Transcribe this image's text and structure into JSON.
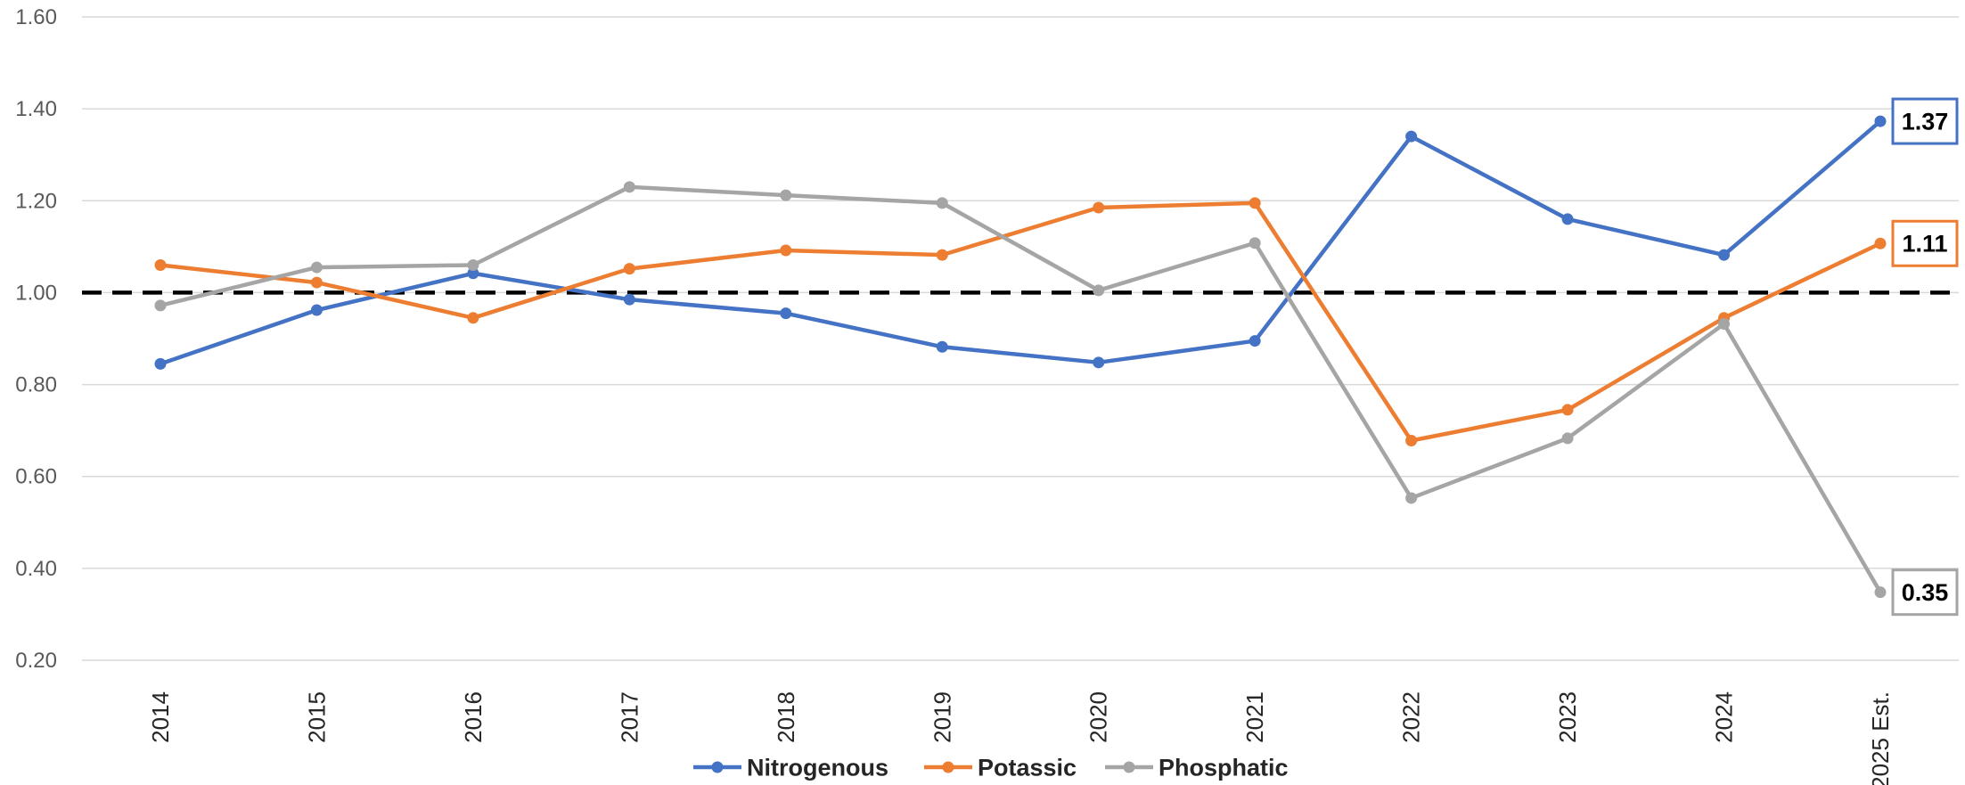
{
  "chart_data": {
    "type": "line",
    "title": "",
    "xlabel": "",
    "ylabel": "",
    "categories": [
      "2014",
      "2015",
      "2016",
      "2017",
      "2018",
      "2019",
      "2020",
      "2021",
      "2022",
      "2023",
      "2024",
      "2025 Est."
    ],
    "ylim": [
      0.2,
      1.6
    ],
    "yticks": [
      0.2,
      0.4,
      0.6,
      0.8,
      1.0,
      1.2,
      1.4,
      1.6
    ],
    "ytick_labels": [
      "0.20",
      "0.40",
      "0.60",
      "0.80",
      "1.00",
      "1.20",
      "1.40",
      "1.60"
    ],
    "grid": "horizontal",
    "reference_line": {
      "value": 1.0,
      "style": "dashed",
      "color": "#000000"
    },
    "legend_position": "bottom",
    "series": [
      {
        "name": "Nitrogenous",
        "color": "#4472C4",
        "values": [
          0.845,
          0.962,
          1.042,
          0.985,
          0.955,
          0.882,
          0.848,
          0.895,
          1.34,
          1.16,
          1.082,
          1.373
        ],
        "end_label": "1.37"
      },
      {
        "name": "Potassic",
        "color": "#ED7D31",
        "values": [
          1.06,
          1.022,
          0.945,
          1.052,
          1.092,
          1.082,
          1.185,
          1.195,
          0.678,
          0.745,
          0.945,
          1.107
        ],
        "end_label": "1.11"
      },
      {
        "name": "Phosphatic",
        "color": "#A5A5A5",
        "values": [
          0.972,
          1.055,
          1.06,
          1.23,
          1.212,
          1.195,
          1.005,
          1.108,
          0.553,
          0.683,
          0.932,
          0.348
        ],
        "end_label": "0.35"
      }
    ]
  }
}
